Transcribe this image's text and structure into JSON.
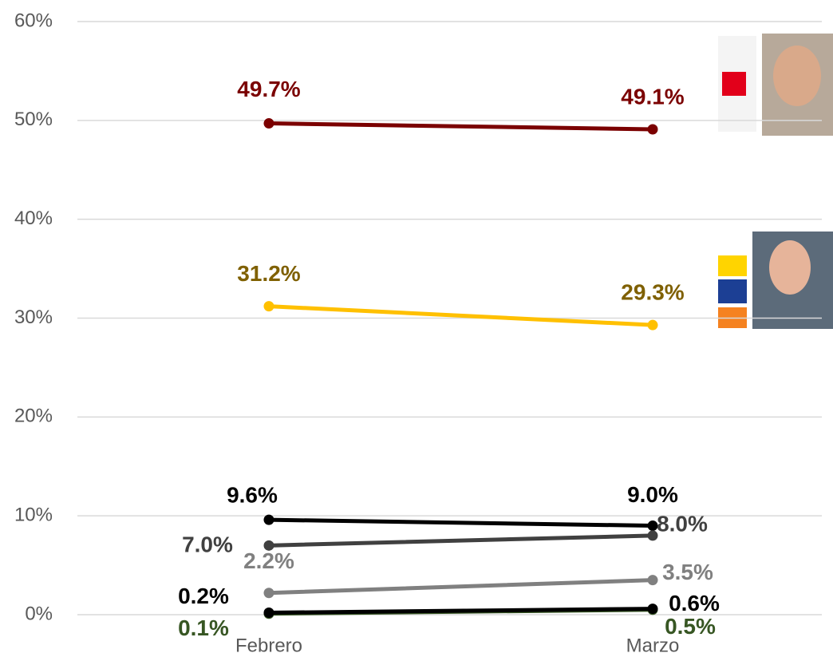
{
  "chart_data": {
    "type": "line",
    "categories": [
      "Febrero",
      "Marzo"
    ],
    "ylim": [
      0,
      60
    ],
    "yticks": [
      {
        "value": 0,
        "label": "0%"
      },
      {
        "value": 10,
        "label": "10%"
      },
      {
        "value": 20,
        "label": "20%"
      },
      {
        "value": 30,
        "label": "30%"
      },
      {
        "value": 40,
        "label": "40%"
      },
      {
        "value": 50,
        "label": "50%"
      },
      {
        "value": 60,
        "label": "60%"
      }
    ],
    "grid": true,
    "series": [
      {
        "color": "#7B0000",
        "label_color": "#7B0000",
        "values": [
          49.7,
          49.1
        ],
        "value_labels": [
          "49.7%",
          "49.1%"
        ]
      },
      {
        "color": "#FFC000",
        "label_color": "#7F6000",
        "values": [
          31.2,
          29.3
        ],
        "value_labels": [
          "31.2%",
          "29.3%"
        ]
      },
      {
        "color": "#000000",
        "label_color": "#000000",
        "values": [
          9.6,
          9.0
        ],
        "value_labels": [
          "9.6%",
          "9.0%"
        ]
      },
      {
        "color": "#404040",
        "label_color": "#404040",
        "values": [
          7.0,
          8.0
        ],
        "value_labels": [
          "7.0%",
          "8.0%"
        ]
      },
      {
        "color": "#808080",
        "label_color": "#808080",
        "values": [
          2.2,
          3.5
        ],
        "value_labels": [
          "2.2%",
          "3.5%"
        ]
      },
      {
        "color": "#375623",
        "label_color": "#375623",
        "values": [
          0.1,
          0.5
        ],
        "value_labels": [
          "0.1%",
          "0.5%"
        ]
      },
      {
        "color": "#000000",
        "label_color": "#000000",
        "values": [
          0.2,
          0.6
        ],
        "value_labels": [
          "0.2%",
          "0.6%"
        ]
      }
    ]
  }
}
